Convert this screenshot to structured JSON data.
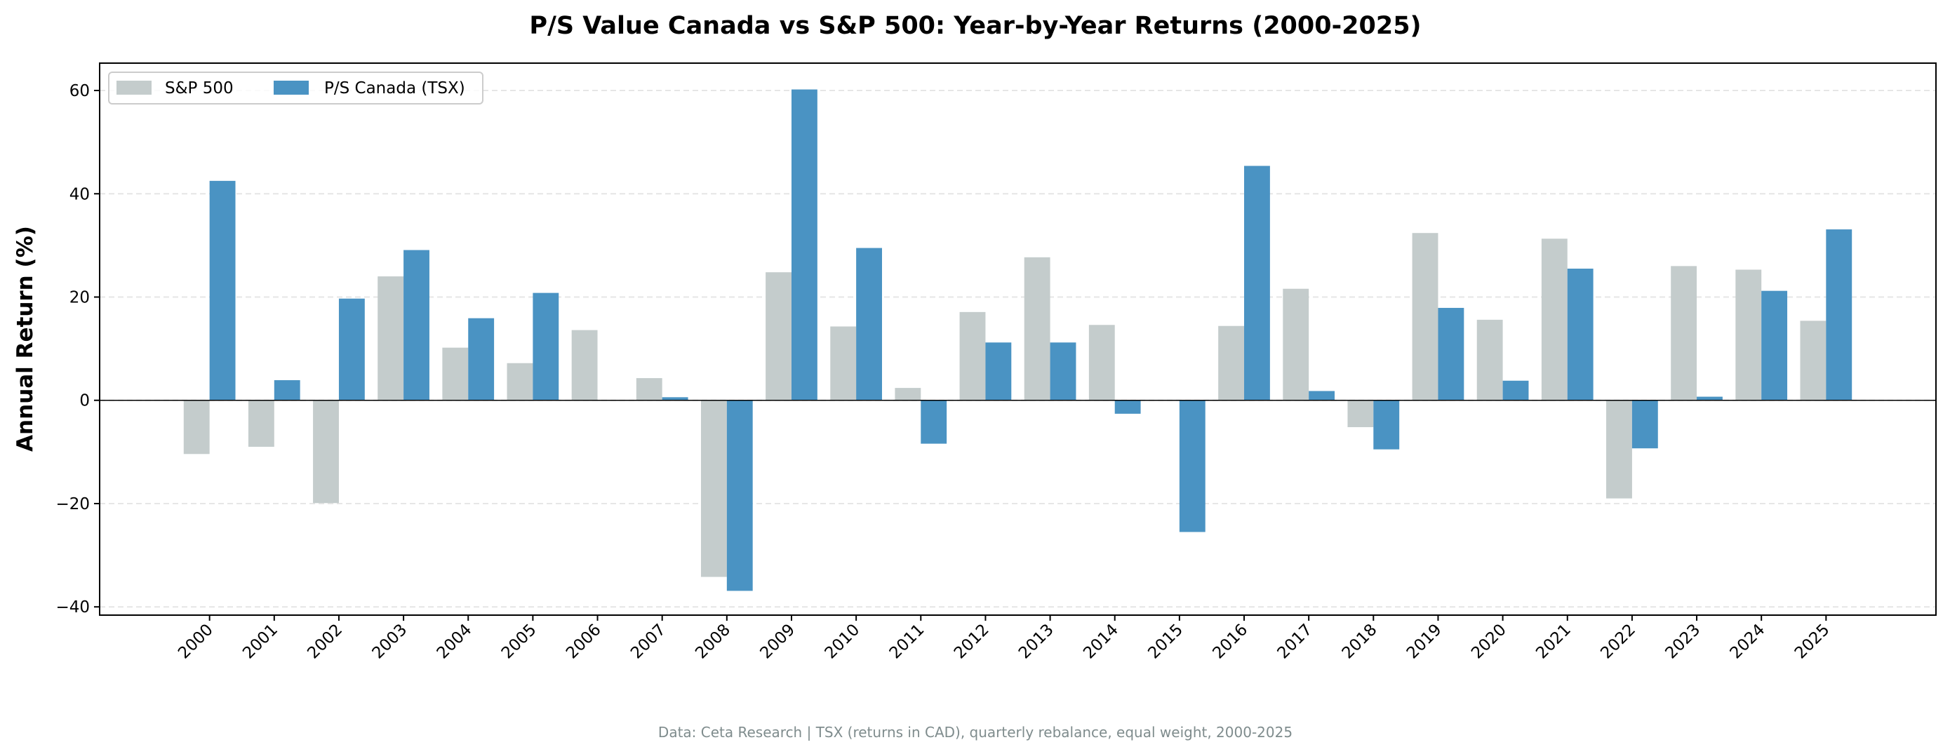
{
  "chart_data": {
    "type": "bar",
    "title": "P/S Value Canada vs S&P 500: Year-by-Year Returns (2000-2025)",
    "xlabel": "",
    "ylabel": "Annual Return (%)",
    "ylim": [
      -41.6,
      65.3
    ],
    "yticks": [
      -40,
      -20,
      0,
      20,
      40,
      60
    ],
    "ytick_labels": [
      "−40",
      "−20",
      "0",
      "20",
      "40",
      "60"
    ],
    "grid": "y dashed",
    "legend": "top-left",
    "categories": [
      "2000",
      "2001",
      "2002",
      "2003",
      "2004",
      "2005",
      "2006",
      "2007",
      "2008",
      "2009",
      "2010",
      "2011",
      "2012",
      "2013",
      "2014",
      "2015",
      "2016",
      "2017",
      "2018",
      "2019",
      "2020",
      "2021",
      "2022",
      "2023",
      "2024",
      "2025"
    ],
    "series": [
      {
        "name": "S&P 500",
        "color": "#c4cccc",
        "values": [
          -10.4,
          -9.0,
          -19.9,
          24.0,
          10.2,
          7.2,
          13.6,
          4.3,
          -34.2,
          24.8,
          14.3,
          2.4,
          17.1,
          27.7,
          14.6,
          0.0,
          14.4,
          21.6,
          -5.2,
          32.4,
          15.6,
          31.3,
          -19.0,
          26.0,
          25.3,
          15.4
        ]
      },
      {
        "name": "P/S Canada (TSX)",
        "color": "#4a93c3",
        "values": [
          42.5,
          3.9,
          19.7,
          29.1,
          15.9,
          20.8,
          0.0,
          0.6,
          -36.9,
          60.2,
          29.5,
          -8.4,
          11.2,
          11.2,
          -2.6,
          -25.5,
          45.4,
          1.8,
          -9.5,
          17.9,
          3.8,
          25.5,
          -9.3,
          0.7,
          21.2,
          33.1
        ]
      }
    ],
    "footnote": "Data: Ceta Research | TSX (returns in CAD), quarterly rebalance, equal weight, 2000-2025"
  }
}
